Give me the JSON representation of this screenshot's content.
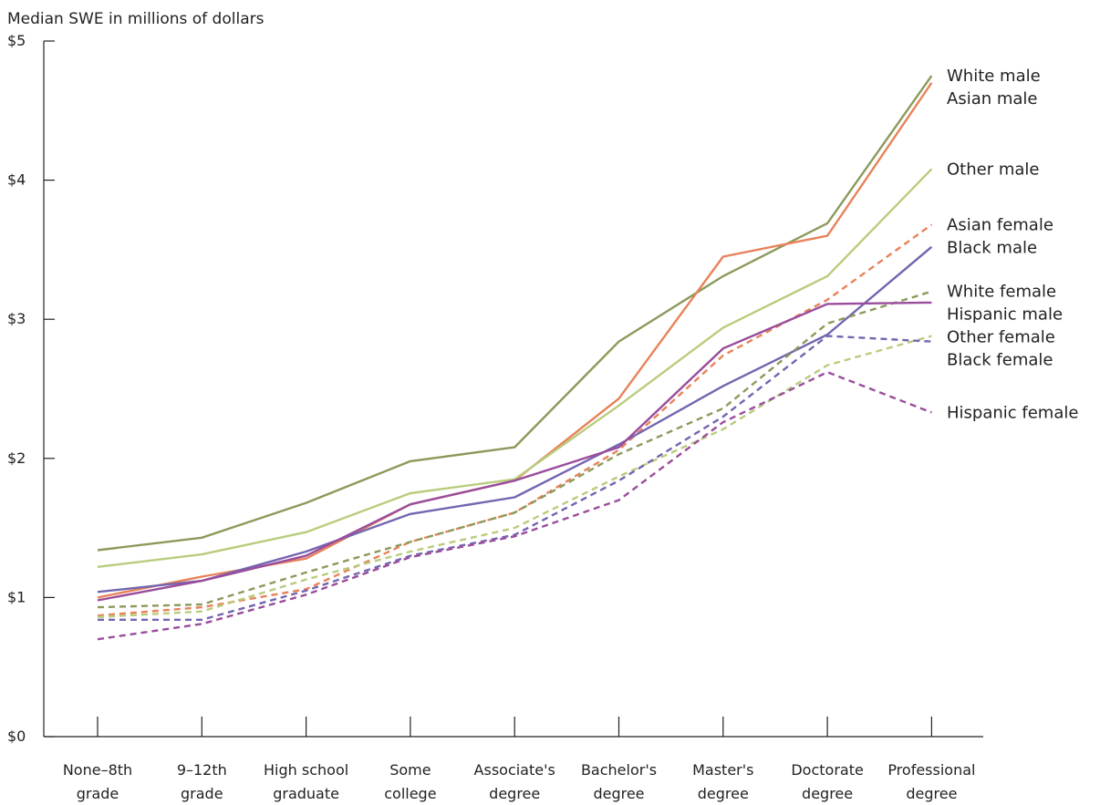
{
  "chart_data": {
    "type": "line",
    "ylabel": "Median SWE in millions of dollars",
    "xlabel": "",
    "ylim": [
      0,
      5
    ],
    "yticks": [
      {
        "value": 0,
        "label": "$0"
      },
      {
        "value": 1,
        "label": "$1"
      },
      {
        "value": 2,
        "label": "$2"
      },
      {
        "value": 3,
        "label": "$3"
      },
      {
        "value": 4,
        "label": "$4"
      },
      {
        "value": 5,
        "label": "$5"
      }
    ],
    "categories": [
      [
        "None–8th",
        "grade"
      ],
      [
        "9–12th",
        "grade"
      ],
      [
        "High school",
        "graduate"
      ],
      [
        "Some",
        "college"
      ],
      [
        "Associate's",
        "degree"
      ],
      [
        "Bachelor's",
        "degree"
      ],
      [
        "Master's",
        "degree"
      ],
      [
        "Doctorate",
        "degree"
      ],
      [
        "Professional",
        "degree"
      ]
    ],
    "grid": false,
    "legend_placement": "right, labels at line ends",
    "series": [
      {
        "name": "White male",
        "color": "#8b9a5b",
        "dashed": false,
        "values": [
          1.34,
          1.43,
          1.68,
          1.98,
          2.08,
          2.84,
          3.31,
          3.69,
          4.75
        ]
      },
      {
        "name": "Asian male",
        "color": "#e8825a",
        "dashed": false,
        "values": [
          1.0,
          1.15,
          1.28,
          1.67,
          1.84,
          2.43,
          3.45,
          3.6,
          4.7
        ]
      },
      {
        "name": "Other male",
        "color": "#b9cc7c",
        "dashed": false,
        "values": [
          1.22,
          1.31,
          1.47,
          1.75,
          1.85,
          2.38,
          2.94,
          3.31,
          4.08
        ]
      },
      {
        "name": "Asian female",
        "color": "#e8825a",
        "dashed": true,
        "values": [
          0.87,
          0.93,
          1.06,
          1.4,
          1.61,
          2.06,
          2.74,
          3.14,
          3.68
        ]
      },
      {
        "name": "Black male",
        "color": "#7465b0",
        "dashed": false,
        "values": [
          1.04,
          1.12,
          1.33,
          1.6,
          1.72,
          2.1,
          2.52,
          2.89,
          3.52
        ]
      },
      {
        "name": "White female",
        "color": "#8b9a5b",
        "dashed": true,
        "values": [
          0.93,
          0.95,
          1.18,
          1.4,
          1.61,
          2.03,
          2.36,
          2.97,
          3.2
        ]
      },
      {
        "name": "Hispanic male",
        "color": "#9a4d9c",
        "dashed": false,
        "values": [
          0.98,
          1.12,
          1.3,
          1.67,
          1.84,
          2.08,
          2.79,
          3.11,
          3.12
        ]
      },
      {
        "name": "Other female",
        "color": "#b9cc7c",
        "dashed": true,
        "values": [
          0.86,
          0.9,
          1.13,
          1.33,
          1.5,
          1.87,
          2.21,
          2.67,
          2.88
        ]
      },
      {
        "name": "Black female",
        "color": "#7465b0",
        "dashed": true,
        "values": [
          0.84,
          0.84,
          1.05,
          1.3,
          1.45,
          1.84,
          2.3,
          2.88,
          2.84
        ]
      },
      {
        "name": "Hispanic female",
        "color": "#9a4d9c",
        "dashed": true,
        "values": [
          0.7,
          0.81,
          1.02,
          1.29,
          1.44,
          1.7,
          2.26,
          2.62,
          2.33
        ]
      }
    ]
  }
}
